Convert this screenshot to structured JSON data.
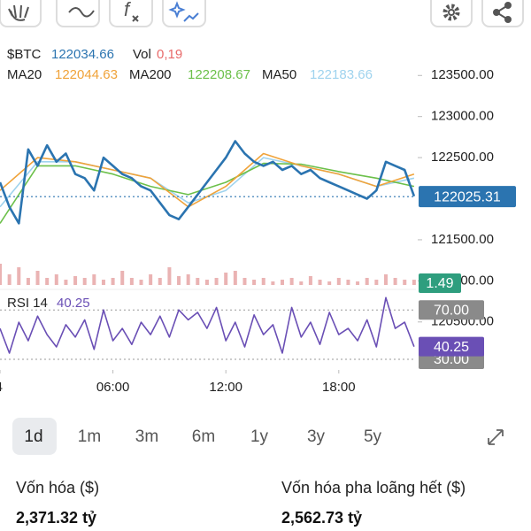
{
  "header": {
    "symbol": "$BTC",
    "price": "122034.66",
    "vol_label": "Vol",
    "vol": "0,19",
    "ma": [
      {
        "name": "MA20",
        "value": "122044.63"
      },
      {
        "name": "MA200",
        "value": "122208.67"
      },
      {
        "name": "MA50",
        "value": "122183.66"
      }
    ]
  },
  "chart_data": [
    {
      "type": "line",
      "x": [
        0,
        0.5,
        1,
        1.5,
        2,
        2.5,
        3,
        3.5,
        4,
        4.5,
        5,
        5.5,
        6,
        6.5,
        7,
        7.5,
        8,
        8.5,
        9,
        9.5,
        10,
        10.5,
        11,
        11.5,
        12,
        12.5,
        13,
        13.5,
        14,
        14.5,
        15,
        15.5,
        16,
        16.5,
        17,
        17.5,
        18,
        18.5,
        19,
        19.5,
        20,
        20.5,
        21,
        21.5,
        22
      ],
      "xlim": [
        0,
        22.1
      ],
      "xticks": [
        {
          "value": 0,
          "label": "4"
        },
        {
          "value": 6,
          "label": "06:00"
        },
        {
          "value": 12,
          "label": "12:00"
        },
        {
          "value": 18,
          "label": "18:00"
        }
      ],
      "ylim": [
        120950,
        123880
      ],
      "yticks": [
        {
          "value": 123500,
          "label": "123500.00"
        },
        {
          "value": 123000,
          "label": "123000.00"
        },
        {
          "value": 122500,
          "label": "122500.00"
        },
        {
          "value": 121500,
          "label": "121500.00"
        },
        {
          "value": 121000,
          "label": "121000.00"
        },
        {
          "value": 120500,
          "label": "120500.00"
        }
      ],
      "series": [
        {
          "name": "$BTC",
          "color": "#2b74b0",
          "values": [
            122200,
            121900,
            121700,
            122600,
            122400,
            122650,
            122450,
            122550,
            122300,
            122250,
            122100,
            122500,
            122400,
            122300,
            122250,
            122150,
            122100,
            121950,
            121800,
            121750,
            121900,
            122050,
            122200,
            122350,
            122500,
            122700,
            122550,
            122450,
            122400,
            122450,
            122350,
            122400,
            122300,
            122350,
            122250,
            122200,
            122150,
            122100,
            122050,
            122000,
            122100,
            122450,
            122400,
            122350,
            122030
          ]
        },
        {
          "name": "MA20",
          "color": "#f0a33a",
          "x": [
            0,
            2,
            4,
            6,
            8,
            10,
            12,
            14,
            16,
            18,
            20,
            22
          ],
          "values": [
            122100,
            122500,
            122450,
            122350,
            122250,
            121900,
            122150,
            122550,
            122400,
            122300,
            122150,
            122300
          ]
        },
        {
          "name": "MA200",
          "color": "#6cc04a",
          "x": [
            0,
            2,
            4,
            6,
            8,
            10,
            12,
            14,
            16,
            18,
            20,
            22
          ],
          "values": [
            121700,
            122400,
            122400,
            122300,
            122150,
            122050,
            122200,
            122430,
            122420,
            122330,
            122250,
            122150
          ]
        },
        {
          "name": "MA50",
          "color": "#9fd3ee",
          "x": [
            0,
            2,
            4,
            6,
            8,
            10,
            12,
            14,
            16,
            18,
            20,
            22
          ],
          "values": [
            121900,
            122450,
            122450,
            122350,
            122250,
            121950,
            122100,
            122500,
            122400,
            122300,
            122150,
            122250
          ]
        }
      ],
      "last_price": 122025.31,
      "volume": {
        "color": "#eab3b3",
        "last_color": "#2e9e7e",
        "ylim": [
          0,
          10
        ],
        "last": 1.49,
        "values": [
          6,
          3,
          5,
          2,
          4,
          2,
          3,
          1.5,
          2.5,
          2,
          3,
          1.5,
          2,
          4,
          2,
          1.5,
          3,
          2,
          5,
          2.5,
          3,
          2,
          1.5,
          2,
          3.5,
          4,
          2,
          1.5,
          2,
          1,
          1.5,
          2,
          1,
          2.5,
          1.5,
          1,
          2,
          1.5,
          1,
          2,
          1.5,
          3,
          2,
          1.5,
          1.49
        ]
      }
    },
    {
      "type": "line",
      "title": "RSI 14",
      "color": "#6a4fb5",
      "x": [
        0,
        0.5,
        1,
        1.5,
        2,
        2.5,
        3,
        3.5,
        4,
        4.5,
        5,
        5.5,
        6,
        6.5,
        7,
        7.5,
        8,
        8.5,
        9,
        9.5,
        10,
        10.5,
        11,
        11.5,
        12,
        12.5,
        13,
        13.5,
        14,
        14.5,
        15,
        15.5,
        16,
        16.5,
        17,
        17.5,
        18,
        18.5,
        19,
        19.5,
        20,
        20.5,
        21,
        21.5,
        22
      ],
      "xlim": [
        0,
        22.1
      ],
      "ylim": [
        23.5,
        84.5
      ],
      "yticks": [
        {
          "value": 70,
          "label": "70.00"
        },
        {
          "value": 30,
          "label": "30.00"
        }
      ],
      "values": [
        55,
        35,
        60,
        45,
        65,
        50,
        40,
        58,
        48,
        62,
        38,
        70,
        45,
        55,
        42,
        60,
        50,
        65,
        48,
        70,
        62,
        68,
        55,
        72,
        45,
        60,
        40,
        66,
        50,
        58,
        35,
        72,
        48,
        60,
        42,
        68,
        50,
        55,
        45,
        62,
        40,
        80,
        55,
        60,
        40.25
      ],
      "last": 40.25
    }
  ],
  "ranges": {
    "items": [
      "1d",
      "1m",
      "3m",
      "6m",
      "1y",
      "3y",
      "5y"
    ],
    "selected": 0
  },
  "stats": [
    {
      "label": "Vốn hóa ($)",
      "value": "2,371.32 tỷ"
    },
    {
      "label": "Vốn hóa pha loãng hết ($)",
      "value": "2,562.73 tỷ"
    }
  ]
}
